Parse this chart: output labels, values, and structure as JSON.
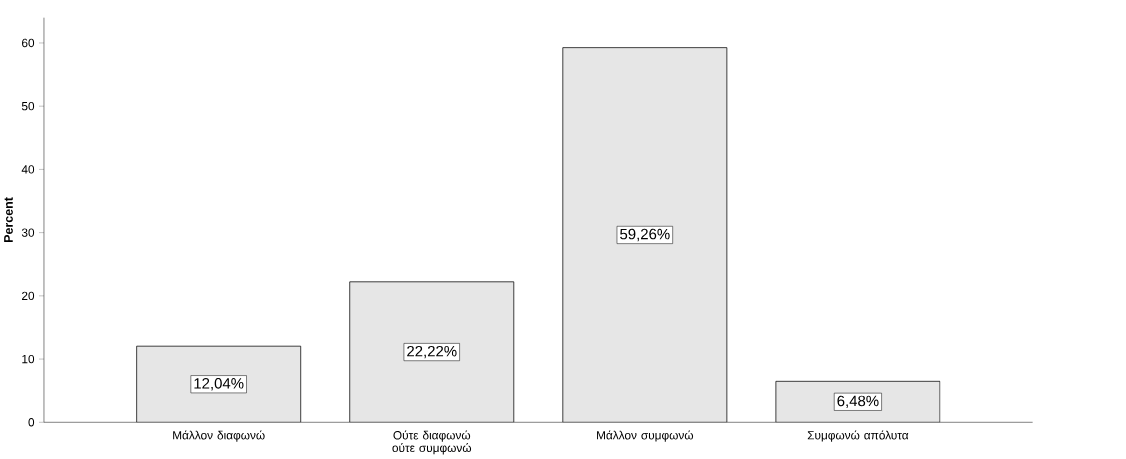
{
  "chart_data": {
    "type": "bar",
    "ylabel": "Percent",
    "categories": [
      "Μάλλον διαφωνώ",
      "Ούτε διαφωνώ ούτε συμφωνώ",
      "Μάλλον συμφωνώ",
      "Συμφωνώ απόλυτα"
    ],
    "values": [
      12.04,
      22.22,
      59.26,
      6.48
    ],
    "value_labels": [
      "12,04%",
      "22,22%",
      "59,26%",
      "6,48%"
    ],
    "color": "#e6e6e6",
    "ylim": [
      0,
      64
    ],
    "yticks": [
      0,
      10,
      20,
      30,
      40,
      50,
      60
    ],
    "grid": false
  }
}
